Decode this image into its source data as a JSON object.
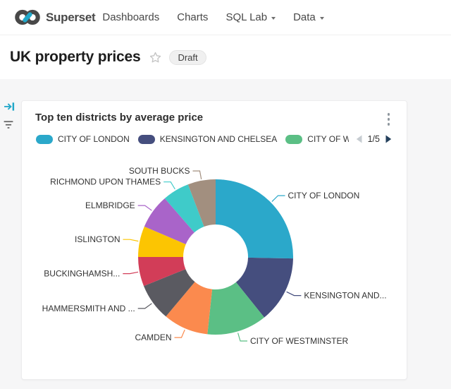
{
  "navbar": {
    "brand": "Superset",
    "logo_icon": "infinity-logo",
    "items": [
      {
        "label": "Dashboards",
        "caret": false
      },
      {
        "label": "Charts",
        "caret": false
      },
      {
        "label": "SQL Lab",
        "caret": true
      },
      {
        "label": "Data",
        "caret": true
      }
    ]
  },
  "page_header": {
    "title": "UK property prices",
    "favorite_icon": "star-outline",
    "status_badge": "Draft"
  },
  "filter_rail": {
    "expand_icon": "arrow-right-to-bar",
    "filter_icon": "filter-lines",
    "accent_color": "#20A7C9"
  },
  "chart_card": {
    "title": "Top ten districts by average price",
    "menu_icon": "kebab-vertical",
    "legend": {
      "items": [
        {
          "label": "CITY OF LONDON",
          "color": "#2BA8CA"
        },
        {
          "label": "KENSINGTON AND CHELSEA",
          "color": "#454E7E"
        },
        {
          "label": "CITY OF WES",
          "color": "#5BBF85",
          "truncated": true
        }
      ],
      "pager": {
        "prev_icon": "triangle-left",
        "prev_enabled": false,
        "page_indicator": "1/5",
        "next_icon": "triangle-right",
        "next_enabled": true
      }
    }
  },
  "chart_data": {
    "type": "pie",
    "donut": true,
    "title": "Top ten districts by average price",
    "legend_position": "top",
    "labels_shown_as": "outside callout lines",
    "values_unit": "percent share of donut, estimated from arc angles",
    "segments": [
      {
        "label": "CITY OF LONDON",
        "percent": 25.3,
        "color": "#2BA8CA"
      },
      {
        "label": "KENSINGTON AND...",
        "percent": 13.9,
        "color": "#454E7E"
      },
      {
        "label": "CITY OF WESTMINSTER",
        "percent": 12.5,
        "color": "#5BBF85"
      },
      {
        "label": "CAMDEN",
        "percent": 9.4,
        "color": "#FB8A4E"
      },
      {
        "label": "HAMMERSMITH AND ...",
        "percent": 7.8,
        "color": "#5A5A61"
      },
      {
        "label": "BUCKINGHAMSH...",
        "percent": 6.1,
        "color": "#D23D58"
      },
      {
        "label": "ISLINGTON",
        "percent": 6.4,
        "color": "#FCC502"
      },
      {
        "label": "ELMBRIDGE",
        "percent": 7.2,
        "color": "#A964C9"
      },
      {
        "label": "RICHMOND UPON THAMES",
        "percent": 5.6,
        "color": "#3FCBC9"
      },
      {
        "label": "SOUTH BUCKS",
        "percent": 5.8,
        "color": "#A28F7F"
      }
    ]
  }
}
